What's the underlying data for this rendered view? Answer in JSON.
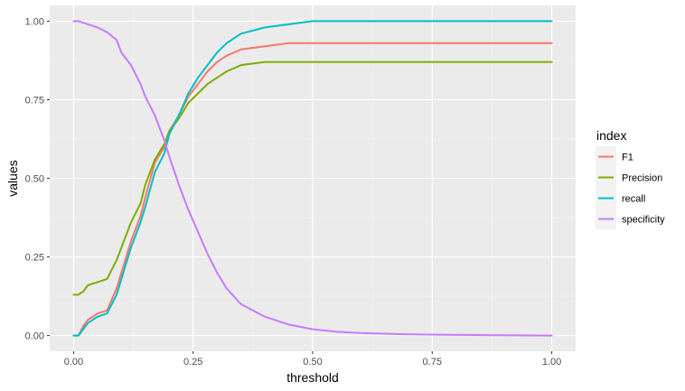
{
  "chart_data": {
    "type": "line",
    "title": "",
    "xlabel": "threshold",
    "ylabel": "values",
    "xlim": [
      -0.05,
      1.05
    ],
    "ylim": [
      -0.05,
      1.05
    ],
    "x_ticks": [
      0.0,
      0.25,
      0.5,
      0.75,
      1.0
    ],
    "x_tick_labels": [
      "0.00",
      "0.25",
      "0.50",
      "0.75",
      "1.00"
    ],
    "y_ticks": [
      0.0,
      0.25,
      0.5,
      0.75,
      1.0
    ],
    "y_tick_labels": [
      "0.00",
      "0.25",
      "0.50",
      "0.75",
      "1.00"
    ],
    "grid": true,
    "legend": {
      "title": "index",
      "position": "right"
    },
    "x": [
      0.0,
      0.01,
      0.02,
      0.03,
      0.05,
      0.07,
      0.09,
      0.1,
      0.12,
      0.14,
      0.15,
      0.17,
      0.19,
      0.2,
      0.22,
      0.24,
      0.26,
      0.28,
      0.3,
      0.32,
      0.35,
      0.4,
      0.45,
      0.5,
      0.55,
      0.6,
      0.7,
      0.8,
      0.9,
      1.0
    ],
    "series": [
      {
        "name": "F1",
        "color": "#F8766D",
        "values": [
          0.0,
          0.0,
          0.03,
          0.05,
          0.07,
          0.08,
          0.15,
          0.2,
          0.3,
          0.38,
          0.44,
          0.55,
          0.6,
          0.65,
          0.7,
          0.76,
          0.8,
          0.84,
          0.87,
          0.89,
          0.91,
          0.92,
          0.93,
          0.93,
          0.93,
          0.93,
          0.93,
          0.93,
          0.93,
          0.93
        ]
      },
      {
        "name": "Precision",
        "color": "#7CAE00",
        "values": [
          0.13,
          0.13,
          0.14,
          0.16,
          0.17,
          0.18,
          0.24,
          0.28,
          0.36,
          0.42,
          0.48,
          0.56,
          0.61,
          0.65,
          0.69,
          0.74,
          0.77,
          0.8,
          0.82,
          0.84,
          0.86,
          0.87,
          0.87,
          0.87,
          0.87,
          0.87,
          0.87,
          0.87,
          0.87,
          0.87
        ]
      },
      {
        "name": "recall",
        "color": "#00BFC4",
        "values": [
          0.0,
          0.0,
          0.02,
          0.04,
          0.06,
          0.07,
          0.13,
          0.18,
          0.28,
          0.36,
          0.41,
          0.52,
          0.58,
          0.64,
          0.7,
          0.77,
          0.82,
          0.86,
          0.9,
          0.93,
          0.96,
          0.98,
          0.99,
          1.0,
          1.0,
          1.0,
          1.0,
          1.0,
          1.0,
          1.0
        ]
      },
      {
        "name": "specificity",
        "color": "#C77CFF",
        "values": [
          1.0,
          1.0,
          0.995,
          0.99,
          0.98,
          0.965,
          0.94,
          0.9,
          0.86,
          0.8,
          0.76,
          0.7,
          0.62,
          0.57,
          0.48,
          0.4,
          0.33,
          0.26,
          0.2,
          0.15,
          0.1,
          0.06,
          0.035,
          0.02,
          0.012,
          0.008,
          0.004,
          0.002,
          0.001,
          0.0
        ]
      }
    ]
  }
}
